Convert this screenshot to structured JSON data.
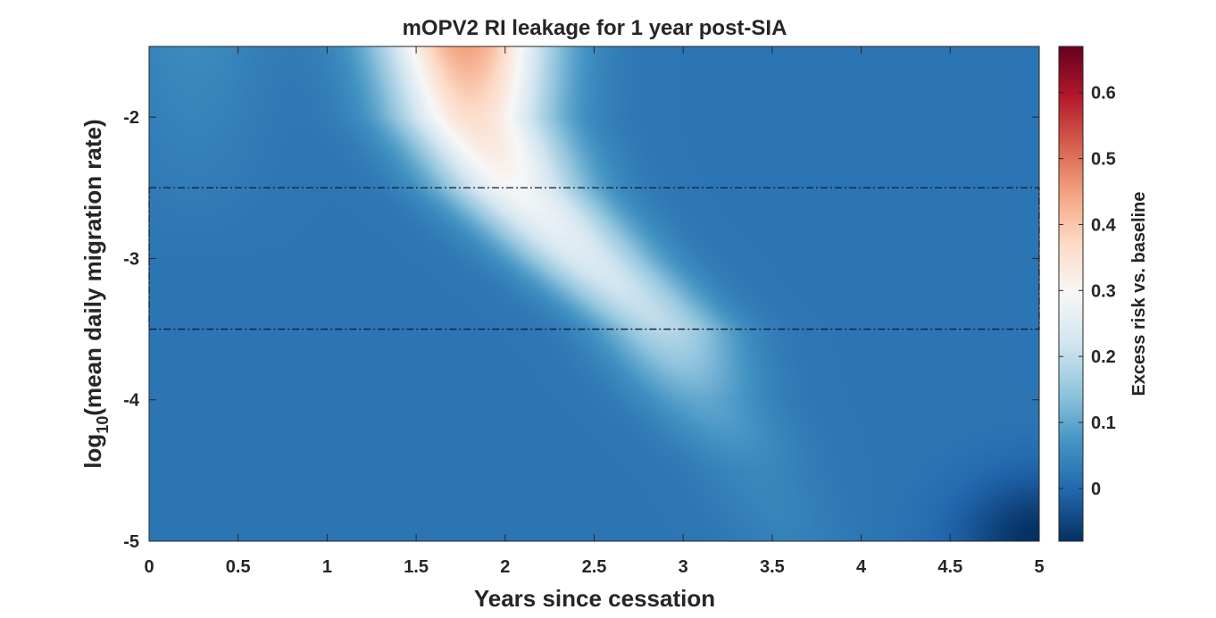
{
  "chart_data": {
    "type": "heatmap",
    "title": "mOPV2 RI leakage for 1 year post-SIA",
    "xlabel": "Years since cessation",
    "ylabel_prefix": "log",
    "ylabel_sub": "10",
    "ylabel_suffix": "(mean daily migration rate)",
    "colorbar_label": "Excess risk vs. baseline",
    "xlim": [
      0,
      5
    ],
    "ylim": [
      -5,
      -1.5
    ],
    "clim": [
      -0.08,
      0.67
    ],
    "x_ticks": [
      0,
      0.5,
      1,
      1.5,
      2,
      2.5,
      3,
      3.5,
      4,
      4.5,
      5
    ],
    "x_tick_labels": [
      "0",
      "0.5",
      "1",
      "1.5",
      "2",
      "2.5",
      "3",
      "3.5",
      "4",
      "4.5",
      "5"
    ],
    "y_ticks": [
      -2,
      -3,
      -4,
      -5
    ],
    "y_tick_labels": [
      "-2",
      "-3",
      "-4",
      "-5"
    ],
    "colorbar_ticks": [
      0,
      0.1,
      0.2,
      0.3,
      0.4,
      0.5,
      0.6
    ],
    "colorbar_tick_labels": [
      "0",
      "0.1",
      "0.2",
      "0.3",
      "0.4",
      "0.5",
      "0.6"
    ],
    "colormap": [
      "#053061",
      "#2166ac",
      "#4393c3",
      "#92c5de",
      "#d1e5f0",
      "#f7f7f7",
      "#fddbc7",
      "#f4a582",
      "#d6604d",
      "#b2182b",
      "#67001f"
    ],
    "highlight_band": {
      "y_range": [
        -3.5,
        -2.5
      ],
      "style": "dash-dot",
      "color": "#1a1a2e"
    },
    "ridge": {
      "description_points": [
        {
          "y": -1.5,
          "x_center": 1.78,
          "peak": 0.45
        },
        {
          "y": -2.0,
          "x_center": 1.82,
          "peak": 0.36
        },
        {
          "y": -2.5,
          "x_center": 2.05,
          "peak": 0.29
        },
        {
          "y": -3.0,
          "x_center": 2.45,
          "peak": 0.24
        },
        {
          "y": -3.5,
          "x_center": 2.9,
          "peak": 0.19
        },
        {
          "y": -4.0,
          "x_center": 3.1,
          "peak": 0.1
        },
        {
          "y": -4.5,
          "x_center": 3.4,
          "peak": 0.05
        },
        {
          "y": -5.0,
          "x_center": 3.6,
          "peak": 0.04
        }
      ],
      "background": 0.02,
      "min_corner": {
        "x": 5.0,
        "y": -5.0,
        "value": -0.08
      }
    }
  }
}
